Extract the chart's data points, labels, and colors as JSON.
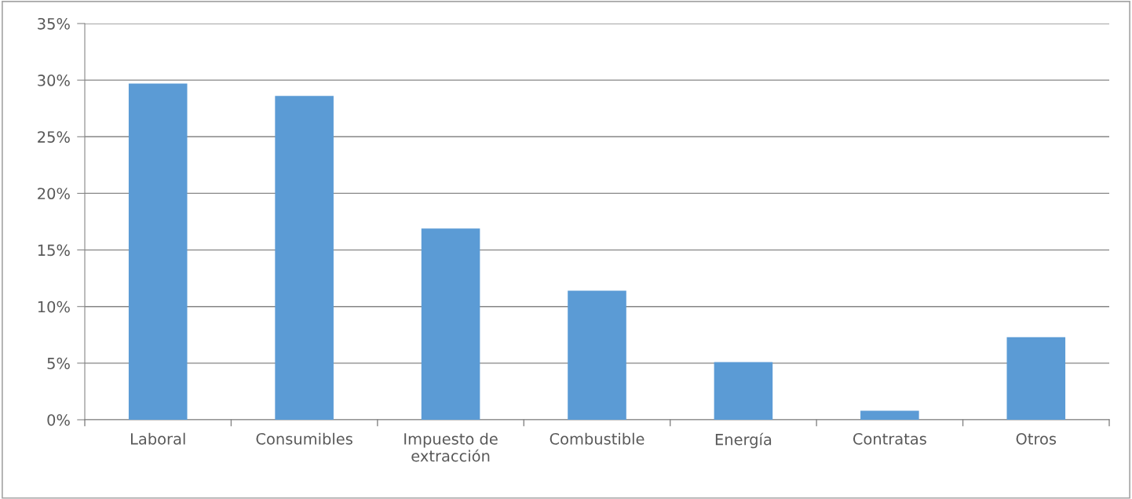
{
  "chart_data": {
    "type": "bar",
    "categories": [
      "Laboral",
      "Consumibles",
      "Impuesto de extracción",
      "Combustible",
      "Energía",
      "Contratas",
      "Otros"
    ],
    "values": [
      29.7,
      28.6,
      16.9,
      11.4,
      5.1,
      0.8,
      7.3
    ],
    "color": "#5b9bd5",
    "ylim": [
      0,
      35
    ],
    "yticks": [
      {
        "value": 0,
        "label": "0%"
      },
      {
        "value": 5,
        "label": "5%"
      },
      {
        "value": 10,
        "label": "10%"
      },
      {
        "value": 15,
        "label": "15%"
      },
      {
        "value": 20,
        "label": "20%"
      },
      {
        "value": 25,
        "label": "25%"
      },
      {
        "value": 30,
        "label": "30%"
      },
      {
        "value": 35,
        "label": "35%"
      }
    ],
    "grid": "y"
  }
}
